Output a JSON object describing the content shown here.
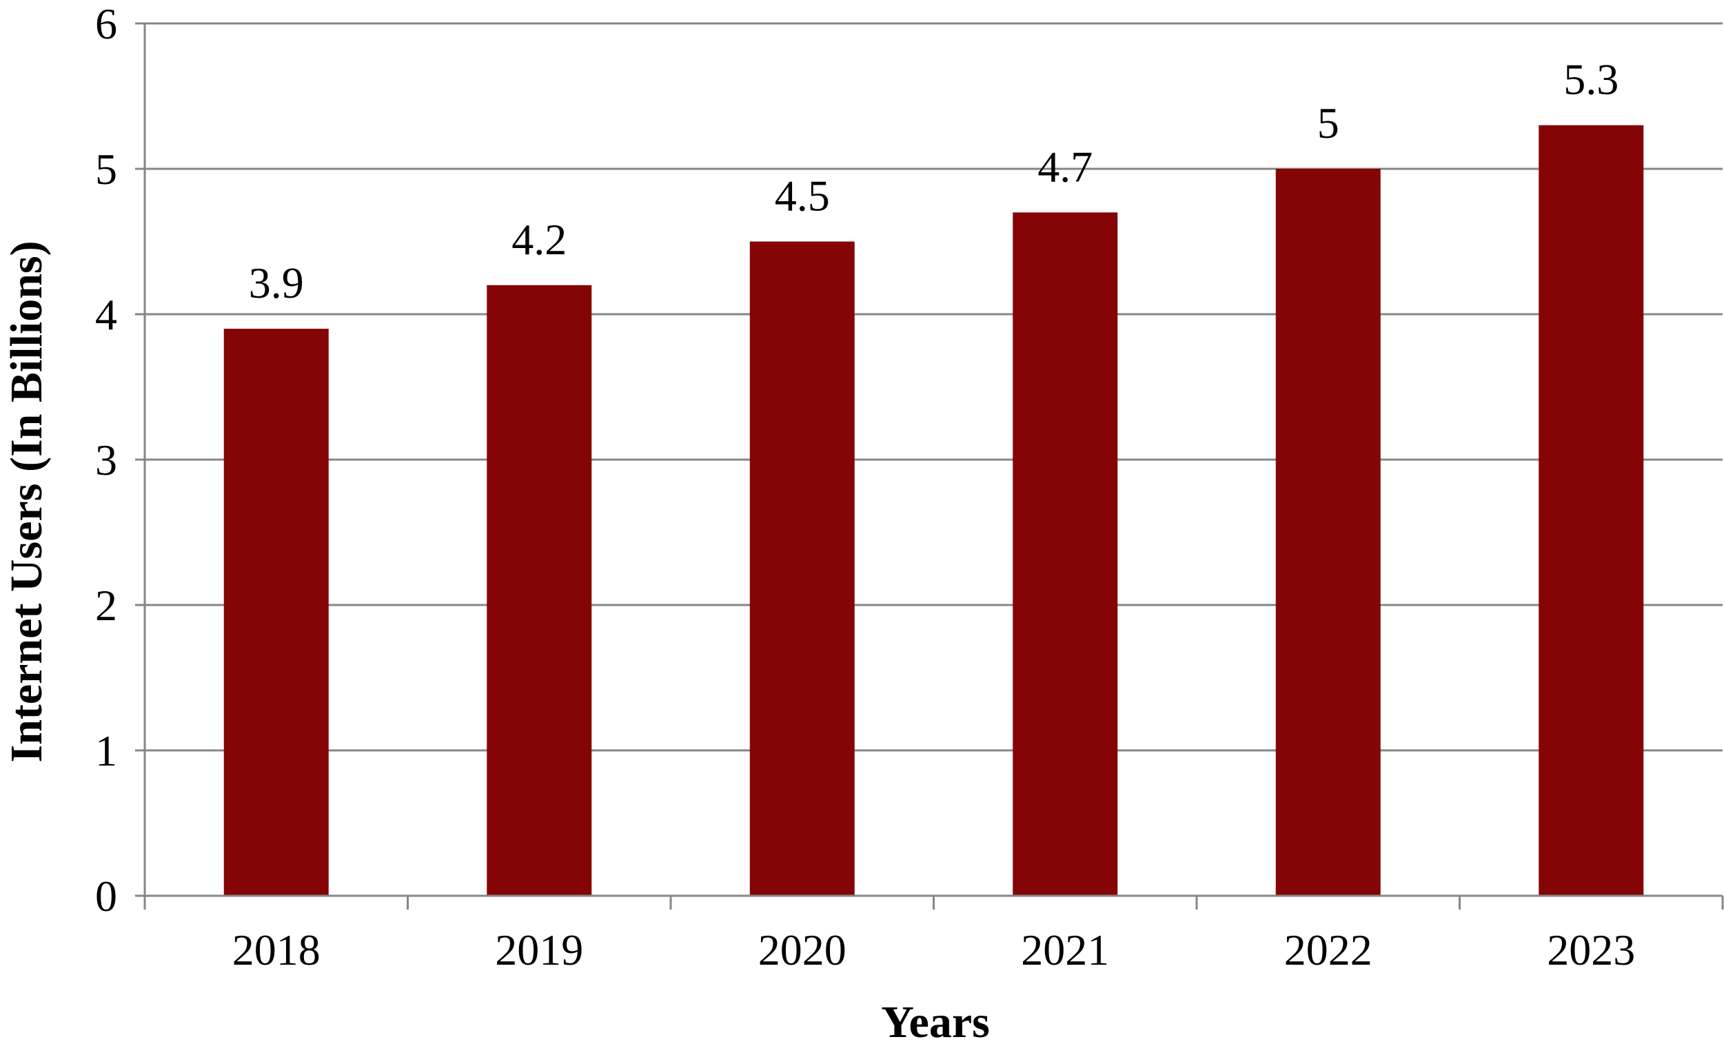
{
  "chart_data": {
    "type": "bar",
    "title": "",
    "xlabel": "Years",
    "ylabel": "Internet Users (In Billions)",
    "categories": [
      "2018",
      "2019",
      "2020",
      "2021",
      "2022",
      "2023"
    ],
    "values": [
      3.9,
      4.2,
      4.5,
      4.7,
      5,
      5.3
    ],
    "data_labels": [
      "3.9",
      "4.2",
      "4.5",
      "4.7",
      "5",
      "5.3"
    ],
    "ylim": [
      0,
      6
    ],
    "yticks": [
      "0",
      "1",
      "2",
      "3",
      "4",
      "5",
      "6"
    ],
    "grid": true,
    "legend": "none",
    "colors": {
      "bar": "#850507",
      "grid": "#868686",
      "text": "#000000"
    }
  }
}
